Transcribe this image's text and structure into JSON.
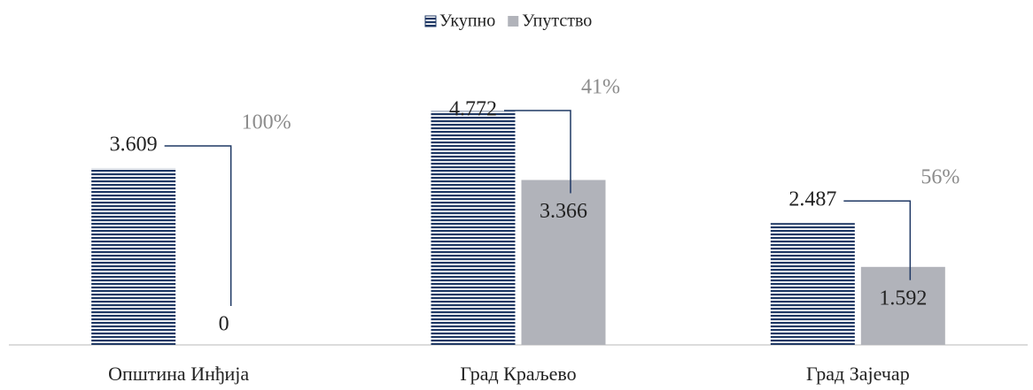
{
  "chart_data": {
    "type": "bar",
    "categories": [
      "Општина Инђија",
      "Град Краљево",
      "Град Зајечар"
    ],
    "series": [
      {
        "name": "Укупно",
        "color": "#1f3864",
        "pattern": "horizontal-stripes",
        "values": [
          3.609,
          4.772,
          2.487
        ]
      },
      {
        "name": "Упутство",
        "color": "#b1b3ba",
        "values": [
          0,
          3.366,
          1.592
        ]
      }
    ],
    "annotations": [
      "100%",
      "41%",
      "56%"
    ],
    "annotation_color": "#8c8c8c",
    "ylim": [
      0,
      5
    ],
    "legend": "top"
  }
}
